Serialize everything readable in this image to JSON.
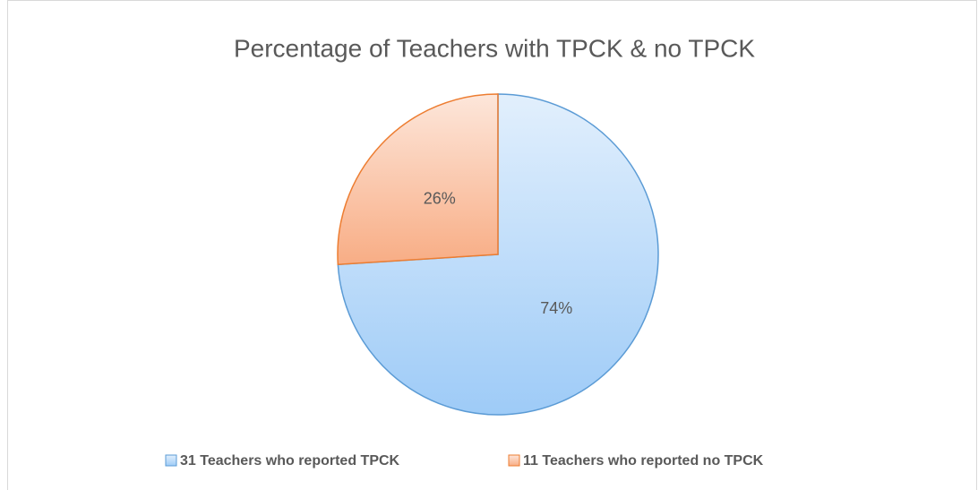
{
  "chart_data": {
    "type": "pie",
    "title": "Percentage of Teachers with TPCK & no TPCK",
    "categories": [
      "31 Teachers who reported TPCK",
      "11 Teachers who reported no TPCK"
    ],
    "values": [
      74,
      26
    ],
    "value_labels": [
      "74%",
      "26%"
    ],
    "colors": [
      "#9ecbf7",
      "#f8ad85"
    ],
    "edgecolors": [
      "#5b9bd5",
      "#ed7d31"
    ],
    "legend": "bottom"
  }
}
